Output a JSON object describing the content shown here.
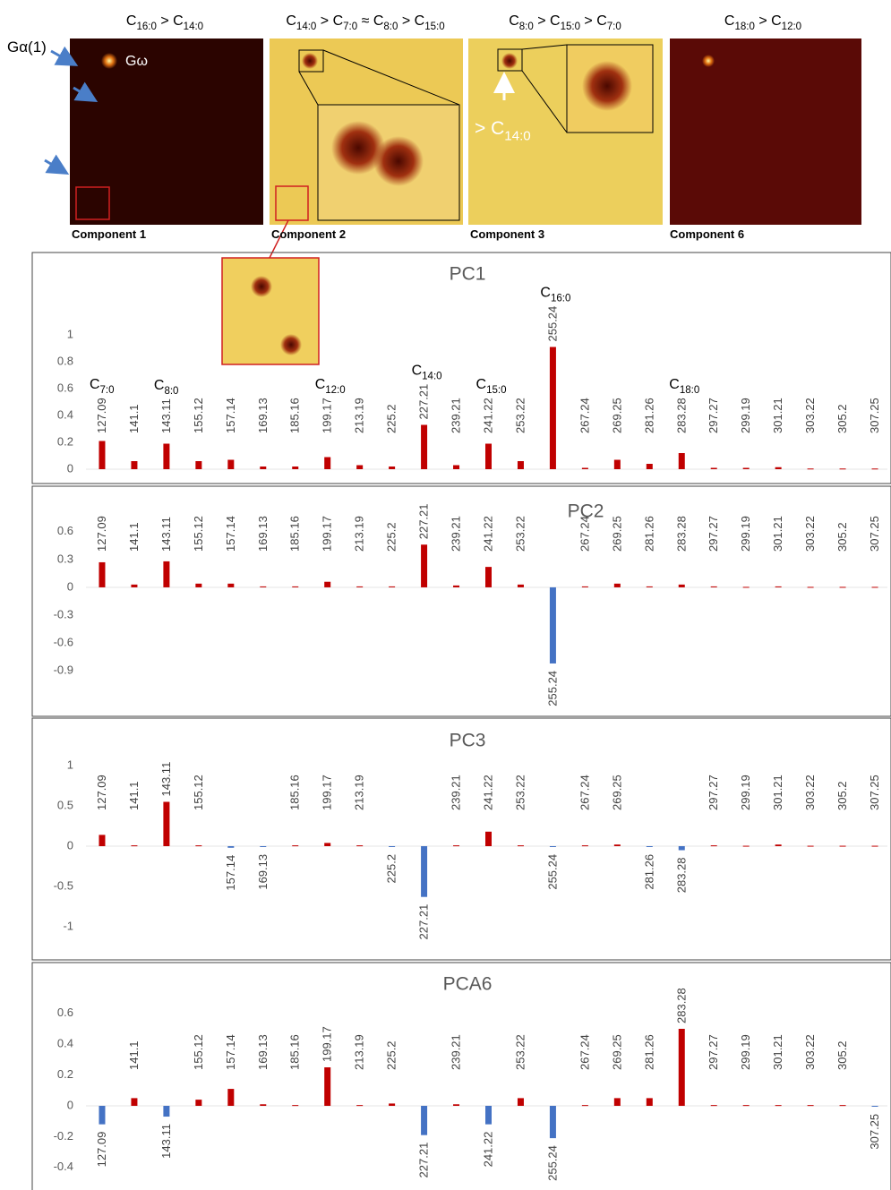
{
  "panels": [
    {
      "title": [
        "C",
        "16:0",
        " > C",
        "14:0"
      ],
      "label": "Component 1"
    },
    {
      "title": [
        "C",
        "14:0",
        " > C",
        "7:0",
        " ≈ C",
        "8:0",
        " > C",
        "15:0"
      ],
      "label": "Component 2"
    },
    {
      "title": [
        "C",
        "8:0",
        " > C",
        "15:0",
        " > C",
        "7:0"
      ],
      "label": "Component 3"
    },
    {
      "title": [
        "C",
        "18:0",
        " > C",
        "12:0"
      ],
      "label": "Component 6"
    }
  ],
  "annotations": {
    "g_alpha": "Gα(1)",
    "g_omega": "Gω",
    "c14": [
      "> C",
      "14:0"
    ]
  },
  "chart_data": [
    {
      "type": "bar",
      "title": "PC1",
      "categories": [
        "127.09",
        "141.1",
        "143.11",
        "155.12",
        "157.14",
        "169.13",
        "185.16",
        "199.17",
        "213.19",
        "225.2",
        "227.21",
        "239.21",
        "241.22",
        "253.22",
        "255.24",
        "267.24",
        "269.25",
        "281.26",
        "283.28",
        "297.27",
        "299.19",
        "301.21",
        "303.22",
        "305.2",
        "307.25"
      ],
      "values": [
        0.21,
        0.06,
        0.19,
        0.06,
        0.07,
        0.02,
        0.02,
        0.09,
        0.03,
        0.02,
        0.33,
        0.03,
        0.19,
        0.06,
        0.91,
        0.01,
        0.07,
        0.04,
        0.12,
        0.01,
        0.01,
        0.015,
        0.005,
        0.005,
        0.005
      ],
      "category_annotations": [
        [
          "C",
          "7:0"
        ],
        null,
        [
          "C",
          "8:0"
        ],
        null,
        null,
        null,
        null,
        [
          "C",
          "12:0"
        ],
        null,
        null,
        [
          "C",
          "14:0"
        ],
        null,
        [
          "C",
          "15:0"
        ],
        null,
        [
          "C",
          "16:0"
        ],
        null,
        null,
        null,
        [
          "C",
          "18:0"
        ],
        null,
        null,
        null,
        null,
        null,
        null
      ],
      "color": "#c00000",
      "negative_color": "#4472c4",
      "ylim": [
        0,
        1.2
      ],
      "yticks": [
        0,
        0.2,
        0.4,
        0.6,
        0.8,
        1
      ],
      "grid": false
    },
    {
      "type": "bar",
      "title": "PC2",
      "categories": [
        "127.09",
        "141.1",
        "143.11",
        "155.12",
        "157.14",
        "169.13",
        "185.16",
        "199.17",
        "213.19",
        "225.2",
        "227.21",
        "239.21",
        "241.22",
        "253.22",
        "255.24",
        "267.24",
        "269.25",
        "281.26",
        "283.28",
        "297.27",
        "299.19",
        "301.21",
        "303.22",
        "305.2",
        "307.25"
      ],
      "values": [
        0.27,
        0.03,
        0.28,
        0.04,
        0.04,
        0.01,
        0.01,
        0.06,
        0.01,
        0.01,
        0.46,
        0.02,
        0.22,
        0.03,
        -0.82,
        0.01,
        0.04,
        0.01,
        0.03,
        0.01,
        0.005,
        0.01,
        0.005,
        0.005,
        0.005
      ],
      "color": "#c00000",
      "negative_color": "#4472c4",
      "ylim": [
        -1.1,
        0.8
      ],
      "yticks": [
        -0.9,
        -0.6,
        -0.3,
        0,
        0.3,
        0.6
      ],
      "grid": false
    },
    {
      "type": "bar",
      "title": "PC3",
      "categories": [
        "127.09",
        "141.1",
        "143.11",
        "155.12",
        "157.14",
        "169.13",
        "185.16",
        "199.17",
        "213.19",
        "225.2",
        "227.21",
        "239.21",
        "241.22",
        "253.22",
        "255.24",
        "267.24",
        "269.25",
        "281.26",
        "283.28",
        "297.27",
        "299.19",
        "301.21",
        "303.22",
        "305.2",
        "307.25"
      ],
      "values": [
        0.14,
        0.01,
        0.55,
        0.01,
        -0.02,
        -0.01,
        0.01,
        0.04,
        0.01,
        -0.01,
        -0.63,
        0.01,
        0.18,
        0.01,
        -0.01,
        0.01,
        0.02,
        -0.01,
        -0.05,
        0.01,
        0.005,
        0.02,
        0.005,
        0.005,
        0.005
      ],
      "color": "#c00000",
      "negative_color": "#4472c4",
      "ylim": [
        -1.3,
        1.2
      ],
      "yticks": [
        -1,
        -0.5,
        0,
        0.5,
        1
      ],
      "grid": false
    },
    {
      "type": "bar",
      "title": "PCA6",
      "categories": [
        "127.09",
        "141.1",
        "143.11",
        "155.12",
        "157.14",
        "169.13",
        "185.16",
        "199.17",
        "213.19",
        "225.2",
        "227.21",
        "239.21",
        "241.22",
        "253.22",
        "255.24",
        "267.24",
        "269.25",
        "281.26",
        "283.28",
        "297.27",
        "299.19",
        "301.21",
        "303.22",
        "305.2",
        "307.25"
      ],
      "values": [
        -0.12,
        0.05,
        -0.07,
        0.04,
        0.11,
        0.01,
        0.005,
        0.25,
        0.005,
        0.015,
        -0.19,
        0.01,
        -0.12,
        0.05,
        -0.21,
        0.005,
        0.05,
        0.05,
        0.5,
        0.005,
        0.005,
        0.005,
        0.005,
        0.005,
        -0.005
      ],
      "color": "#c00000",
      "negative_color": "#4472c4",
      "ylim": [
        -0.5,
        0.75
      ],
      "yticks": [
        -0.4,
        -0.2,
        0,
        0.2,
        0.4,
        0.6
      ],
      "grid": false
    }
  ]
}
